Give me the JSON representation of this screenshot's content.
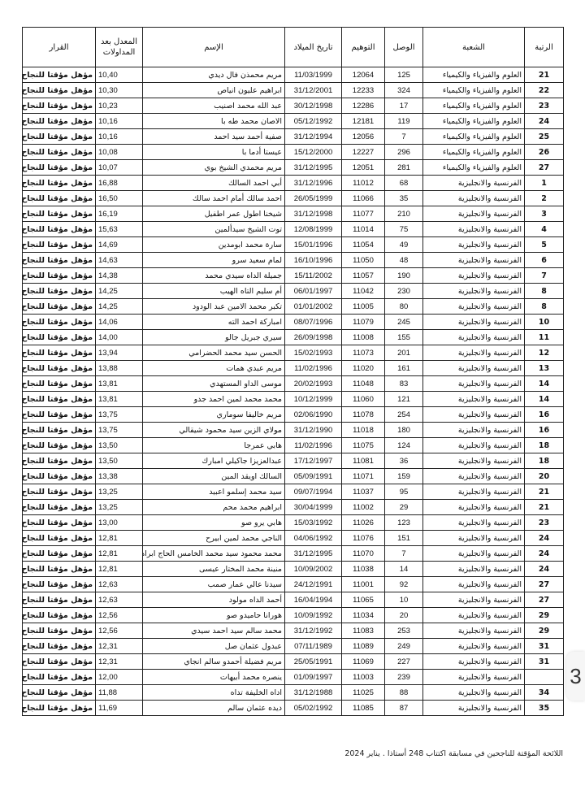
{
  "headers": {
    "rank": "الرتبة",
    "branch": "الشعبة",
    "receipt": "الوصل",
    "code": "التوهيم",
    "birth_date": "تاريخ الميلاد",
    "name": "الإسم",
    "average": "المعدل بعد المداولات",
    "decision": "القرار"
  },
  "rows": [
    [
      "21",
      "العلوم والفيزياء والكيمياء",
      "125",
      "12064",
      "11/03/1999",
      "مريم محمذن فال ديدي",
      "10,40",
      "مؤهل مؤقتا للنجاح"
    ],
    [
      "22",
      "العلوم والفيزياء والكيمياء",
      "324",
      "12233",
      "31/12/2001",
      "ابراهيم عليون انياص",
      "10,30",
      "مؤهل مؤقتا للنجاح"
    ],
    [
      "23",
      "العلوم والفيزياء والكيمياء",
      "17",
      "12286",
      "30/12/1998",
      "عبد الله محمد اصنيب",
      "10,23",
      "مؤهل مؤقتا للنجاح"
    ],
    [
      "24",
      "العلوم والفيزياء والكيمياء",
      "119",
      "12181",
      "05/12/1992",
      "الاصان محمد طه با",
      "10,16",
      "مؤهل مؤقتا للنجاح"
    ],
    [
      "25",
      "العلوم والفيزياء والكيمياء",
      "7",
      "12056",
      "31/12/1994",
      "صفية أحمد سيد احمد",
      "10,16",
      "مؤهل مؤقتا للنجاح"
    ],
    [
      "26",
      "العلوم والفيزياء والكيمياء",
      "296",
      "12227",
      "15/12/2000",
      "عيستا أدما با",
      "10,08",
      "مؤهل مؤقتا للنجاح"
    ],
    [
      "27",
      "العلوم والفيزياء والكيمياء",
      "281",
      "12051",
      "31/12/1995",
      "مريم محمدي الشيخ بوي",
      "10,07",
      "مؤهل مؤقتا للنجاح"
    ],
    [
      "1",
      "الفرنسية والانجليزية",
      "68",
      "11012",
      "31/12/1996",
      "أبي احمد السالك",
      "16,88",
      "مؤهل مؤقتا للنجاح"
    ],
    [
      "2",
      "الفرنسية والانجليزية",
      "35",
      "11066",
      "26/05/1999",
      "احمد سالك أمام احمد سالك",
      "16,50",
      "مؤهل مؤقتا للنجاح"
    ],
    [
      "3",
      "الفرنسية والانجليزية",
      "210",
      "11077",
      "31/12/1998",
      "شيخنا اطول عمر اطفيل",
      "16,19",
      "مؤهل مؤقتا للنجاح"
    ],
    [
      "4",
      "الفرنسية والانجليزية",
      "75",
      "11014",
      "12/08/1999",
      "توت الشيخ سيدألمين",
      "15,63",
      "مؤهل مؤقتا للنجاح"
    ],
    [
      "5",
      "الفرنسية والانجليزية",
      "49",
      "11054",
      "15/01/1996",
      "سارة محمد ابومدين",
      "14,69",
      "مؤهل مؤقتا للنجاح"
    ],
    [
      "6",
      "الفرنسية والانجليزية",
      "48",
      "11050",
      "16/10/1996",
      "لمام سعيد سرو",
      "14,63",
      "مؤهل مؤقتا للنجاح"
    ],
    [
      "7",
      "الفرنسية والانجليزية",
      "190",
      "11057",
      "15/11/2002",
      "جميلة الداه سيدي محمد",
      "14,38",
      "مؤهل مؤقتا للنجاح"
    ],
    [
      "8",
      "الفرنسية والانجليزية",
      "230",
      "11042",
      "06/01/1997",
      "أم سليم التاه الهيب",
      "14,25",
      "مؤهل مؤقتا للنجاح"
    ],
    [
      "8",
      "الفرنسية والانجليزية",
      "80",
      "11005",
      "01/01/2002",
      "تكبر محمد الامين عبد الودود",
      "14,25",
      "مؤهل مؤقتا للنجاح"
    ],
    [
      "10",
      "الفرنسية والانجليزية",
      "245",
      "11079",
      "08/07/1996",
      "امباركة احمد الته",
      "14,06",
      "مؤهل مؤقتا للنجاح"
    ],
    [
      "11",
      "الفرنسية والانجليزية",
      "155",
      "11008",
      "26/09/1998",
      "سيري جبريل جالو",
      "14,00",
      "مؤهل مؤقتا للنجاح"
    ],
    [
      "12",
      "الفرنسية والانجليزية",
      "201",
      "11073",
      "15/02/1993",
      "الحسن سيد محمد الحضرامي",
      "13,94",
      "مؤهل مؤقتا للنجاح"
    ],
    [
      "13",
      "الفرنسية والانجليزية",
      "161",
      "11020",
      "11/02/1996",
      "مريم عبدي همات",
      "13,88",
      "مؤهل مؤقتا للنجاح"
    ],
    [
      "14",
      "الفرنسية والانجليزية",
      "83",
      "11048",
      "20/02/1993",
      "موسى الداو المستهدي",
      "13,81",
      "مؤهل مؤقتا للنجاح"
    ],
    [
      "14",
      "الفرنسية والانجليزية",
      "121",
      "11060",
      "10/12/1999",
      "محمد محمد لمين احمد جدو",
      "13,81",
      "مؤهل مؤقتا للنجاح"
    ],
    [
      "16",
      "الفرنسية والانجليزية",
      "254",
      "11078",
      "02/06/1990",
      "مريم خاليفا سوماري",
      "13,75",
      "مؤهل مؤقتا للنجاح"
    ],
    [
      "16",
      "الفرنسية والانجليزية",
      "180",
      "11018",
      "31/12/1990",
      "مولاي الزين سيد محمود شيقالي",
      "13,75",
      "مؤهل مؤقتا للنجاح"
    ],
    [
      "18",
      "الفرنسية والانجليزية",
      "124",
      "11075",
      "11/02/1996",
      "هابي عمرجا",
      "13,50",
      "مؤهل مؤقتا للنجاح"
    ],
    [
      "18",
      "الفرنسية والانجليزية",
      "36",
      "11081",
      "17/12/1997",
      "عبدالعزيزا جاكيلي امبارك",
      "13,50",
      "مؤهل مؤقتا للنجاح"
    ],
    [
      "20",
      "الفرنسية والانجليزية",
      "159",
      "11071",
      "05/09/1991",
      "السالك اويقد المين",
      "13,38",
      "مؤهل مؤقتا للنجاح"
    ],
    [
      "21",
      "الفرنسية والانجليزية",
      "95",
      "11037",
      "09/07/1994",
      "سيد محمد إسلمو اعبيد",
      "13,25",
      "مؤهل مؤقتا للنجاح"
    ],
    [
      "21",
      "الفرنسية والانجليزية",
      "29",
      "11002",
      "30/04/1999",
      "ابراهيم محمد محم",
      "13,25",
      "مؤهل مؤقتا للنجاح"
    ],
    [
      "23",
      "الفرنسية والانجليزية",
      "123",
      "11026",
      "15/03/1992",
      "هابي يرو صو",
      "13,00",
      "مؤهل مؤقتا للنجاح"
    ],
    [
      "24",
      "الفرنسية والانجليزية",
      "151",
      "11076",
      "04/06/1992",
      "الناجي محمد لمين ابيرح",
      "12,81",
      "مؤهل مؤقتا للنجاح"
    ],
    [
      "24",
      "الفرنسية والانجليزية",
      "7",
      "11070",
      "31/12/1995",
      "محمد محمود سيد محمد الخامس الحاج ابراهيم",
      "12,81",
      "مؤهل مؤقتا للنجاح"
    ],
    [
      "24",
      "الفرنسية والانجليزية",
      "14",
      "11038",
      "10/09/2002",
      "منينة محمد المختار عيسى",
      "12,81",
      "مؤهل مؤقتا للنجاح"
    ],
    [
      "27",
      "الفرنسية والانجليزية",
      "92",
      "11001",
      "24/12/1991",
      "سيدنا عالي عمار صمب",
      "12,63",
      "مؤهل مؤقتا للنجاح"
    ],
    [
      "27",
      "الفرنسية والانجليزية",
      "10",
      "11065",
      "16/04/1994",
      "أحمد الداه مولود",
      "12,63",
      "مؤهل مؤقتا للنجاح"
    ],
    [
      "29",
      "الفرنسية والانجليزية",
      "20",
      "11034",
      "10/09/1992",
      "هورانا حاميدو صو",
      "12,56",
      "مؤهل مؤقتا للنجاح"
    ],
    [
      "29",
      "الفرنسية والانجليزية",
      "253",
      "11083",
      "31/12/1992",
      "محمد سالم سيد احمد سيدي",
      "12,56",
      "مؤهل مؤقتا للنجاح"
    ],
    [
      "31",
      "الفرنسية والانجليزية",
      "249",
      "11089",
      "07/11/1989",
      "عبدول عثمان صل",
      "12,31",
      "مؤهل مؤقتا للنجاح"
    ],
    [
      "31",
      "الفرنسية والانجليزية",
      "227",
      "11069",
      "25/05/1991",
      "مريم فضيلة أحمدو سالم انجاي",
      "12,31",
      "مؤهل مؤقتا للنجاح"
    ],
    [
      "",
      "الفرنسية والانجليزية",
      "239",
      "11003",
      "01/09/1997",
      "ينصره محمد أبيهات",
      "12,00",
      "مؤهل مؤقتا للنجاح"
    ],
    [
      "34",
      "الفرنسية والانجليزية",
      "88",
      "11025",
      "31/12/1988",
      "اداه الخليفة تداه",
      "11,88",
      "مؤهل مؤقتا للنجاح"
    ],
    [
      "35",
      "الفرنسية والانجليزية",
      "87",
      "11085",
      "05/02/1992",
      "ديده عثمان سالم",
      "11,69",
      "مؤهل مؤقتا للنجاح"
    ]
  ],
  "footer": "اللائحة المؤقتة للناجحين في مسابقة اكتتاب 248 أستاذا . يناير 2024",
  "page_badge": "3"
}
